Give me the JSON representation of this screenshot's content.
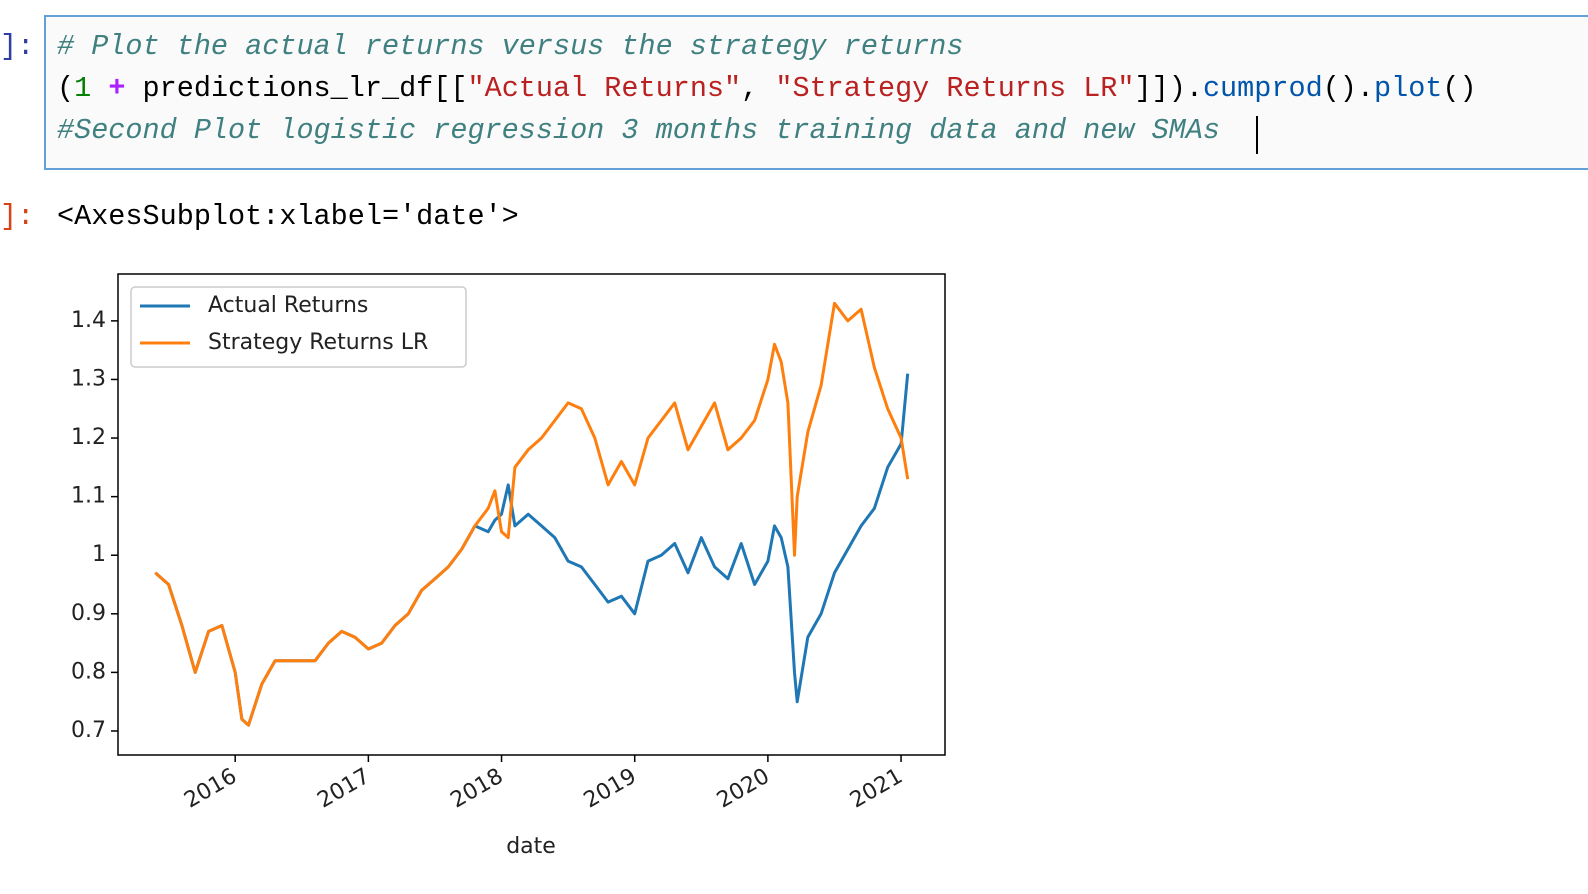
{
  "notebook": {
    "input_prompt": "]:",
    "code_line1": "# Plot the actual returns versus the strategy returns",
    "code_line2_tokens": [
      "(",
      "1",
      " + ",
      "predictions_lr_df[[",
      "\"Actual Returns\"",
      ", ",
      "\"Strategy Returns LR\"",
      "]]).",
      "cumprod",
      "().",
      "plot",
      "()"
    ],
    "code_line3": "#Second Plot logistic regression 3 months training data and new SMAs",
    "output_prompt": "]:",
    "output_text": "<AxesSubplot:xlabel='date'>"
  },
  "chart_data": {
    "type": "line",
    "xlabel": "date",
    "x": [
      2015.4,
      2015.5,
      2015.6,
      2015.7,
      2015.8,
      2015.9,
      2016.0,
      2016.05,
      2016.1,
      2016.2,
      2016.3,
      2016.4,
      2016.5,
      2016.6,
      2016.7,
      2016.8,
      2016.9,
      2017.0,
      2017.1,
      2017.2,
      2017.3,
      2017.4,
      2017.5,
      2017.6,
      2017.7,
      2017.8,
      2017.9,
      2017.95,
      2018.0,
      2018.05,
      2018.1,
      2018.2,
      2018.3,
      2018.4,
      2018.5,
      2018.6,
      2018.7,
      2018.8,
      2018.9,
      2019.0,
      2019.1,
      2019.2,
      2019.3,
      2019.4,
      2019.5,
      2019.6,
      2019.7,
      2019.8,
      2019.9,
      2020.0,
      2020.05,
      2020.1,
      2020.15,
      2020.2,
      2020.22,
      2020.3,
      2020.4,
      2020.5,
      2020.6,
      2020.7,
      2020.8,
      2020.9,
      2021.0,
      2021.05
    ],
    "series": [
      {
        "name": "Actual Returns",
        "color": "#1f77b4",
        "values": [
          0.97,
          0.95,
          0.88,
          0.8,
          0.87,
          0.88,
          0.8,
          0.72,
          0.71,
          0.78,
          0.82,
          0.82,
          0.82,
          0.82,
          0.85,
          0.87,
          0.86,
          0.84,
          0.85,
          0.88,
          0.9,
          0.94,
          0.96,
          0.98,
          1.01,
          1.05,
          1.04,
          1.06,
          1.07,
          1.12,
          1.05,
          1.07,
          1.05,
          1.03,
          0.99,
          0.98,
          0.95,
          0.92,
          0.93,
          0.9,
          0.99,
          1.0,
          1.02,
          0.97,
          1.03,
          0.98,
          0.96,
          1.02,
          0.95,
          0.99,
          1.05,
          1.03,
          0.98,
          0.8,
          0.75,
          0.86,
          0.9,
          0.97,
          1.01,
          1.05,
          1.08,
          1.15,
          1.19,
          1.31
        ]
      },
      {
        "name": "Strategy Returns LR",
        "color": "#ff7f0e",
        "values": [
          0.97,
          0.95,
          0.88,
          0.8,
          0.87,
          0.88,
          0.8,
          0.72,
          0.71,
          0.78,
          0.82,
          0.82,
          0.82,
          0.82,
          0.85,
          0.87,
          0.86,
          0.84,
          0.85,
          0.88,
          0.9,
          0.94,
          0.96,
          0.98,
          1.01,
          1.05,
          1.08,
          1.11,
          1.04,
          1.03,
          1.15,
          1.18,
          1.2,
          1.23,
          1.26,
          1.25,
          1.2,
          1.12,
          1.16,
          1.12,
          1.2,
          1.23,
          1.26,
          1.18,
          1.22,
          1.26,
          1.18,
          1.2,
          1.23,
          1.3,
          1.36,
          1.33,
          1.26,
          1.0,
          1.1,
          1.21,
          1.29,
          1.43,
          1.4,
          1.42,
          1.32,
          1.25,
          1.2,
          1.13
        ]
      }
    ],
    "xlim": [
      2015.12,
      2021.33
    ],
    "xticks": [
      2016,
      2017,
      2018,
      2019,
      2020,
      2021
    ],
    "ylim": [
      0.659,
      1.48
    ],
    "yticks": [
      0.7,
      0.8,
      0.9,
      1.0,
      1.1,
      1.2,
      1.3,
      1.4
    ],
    "legend": "upper left"
  }
}
